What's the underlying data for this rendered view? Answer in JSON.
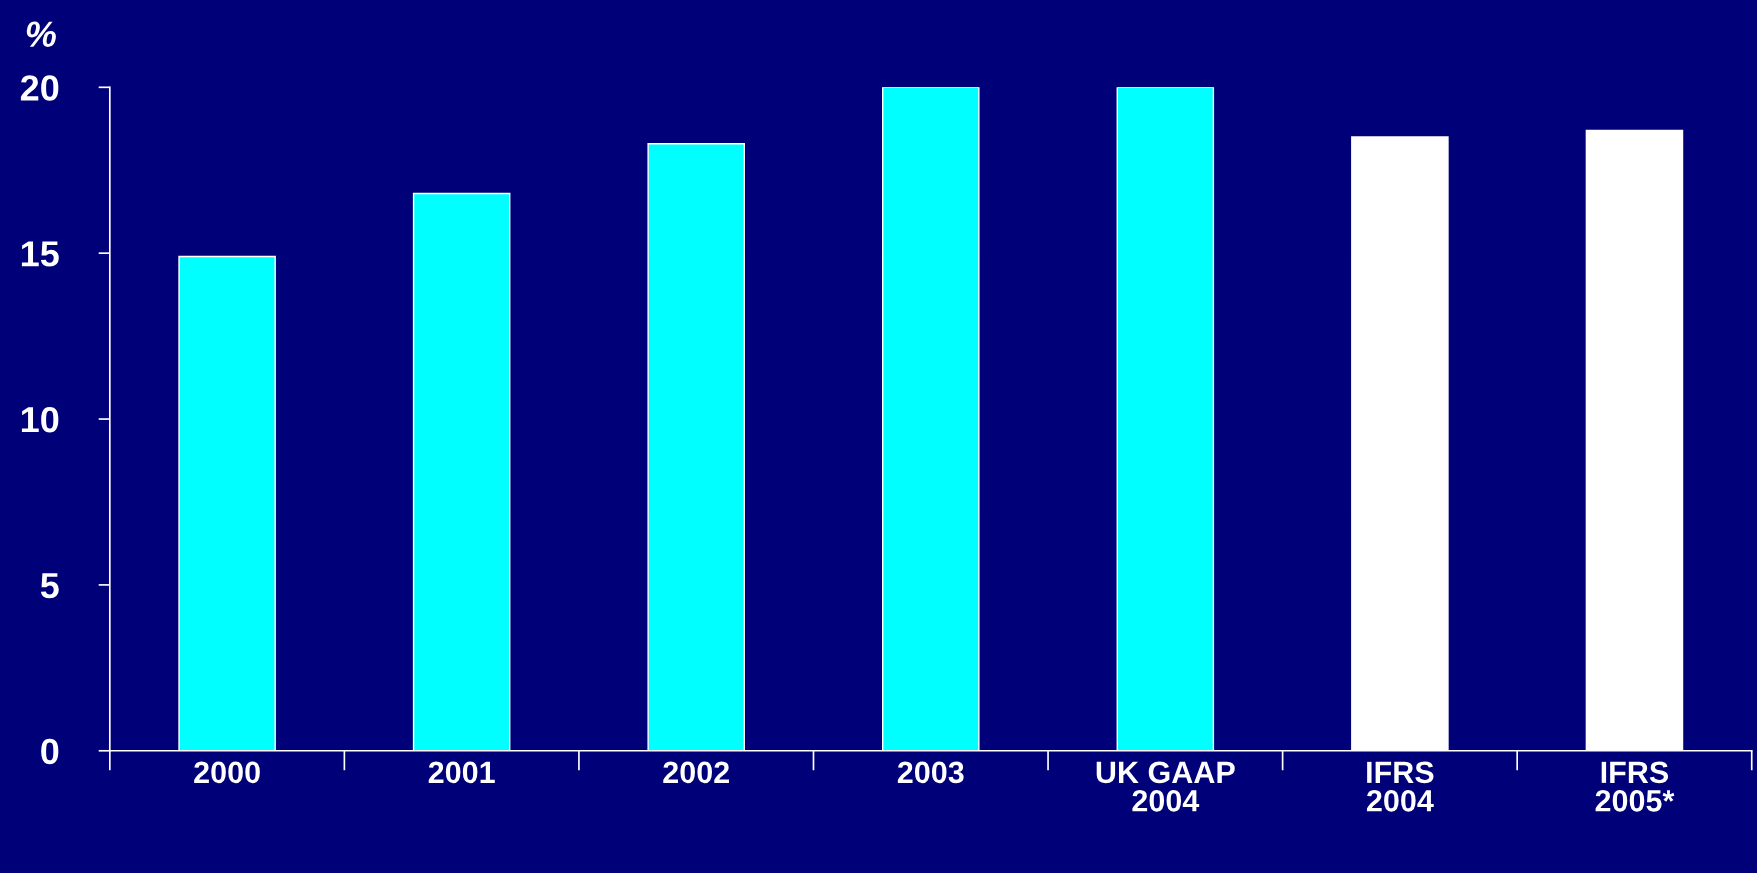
{
  "chart_data": {
    "type": "bar",
    "ylabel": "%",
    "categories": [
      "2000",
      "2001",
      "2002",
      "2003",
      "UK GAAP\n2004",
      "IFRS\n2004",
      "IFRS\n2005*"
    ],
    "values": [
      14.9,
      16.8,
      18.3,
      20,
      20,
      18.5,
      18.7
    ],
    "colors": [
      "#00ffff",
      "#00ffff",
      "#00ffff",
      "#00ffff",
      "#00ffff",
      "#ffffff",
      "#ffffff"
    ],
    "ylim": [
      0,
      20
    ],
    "yticks": [
      0,
      5,
      10,
      15,
      20
    ],
    "grid": false,
    "legend": false
  }
}
